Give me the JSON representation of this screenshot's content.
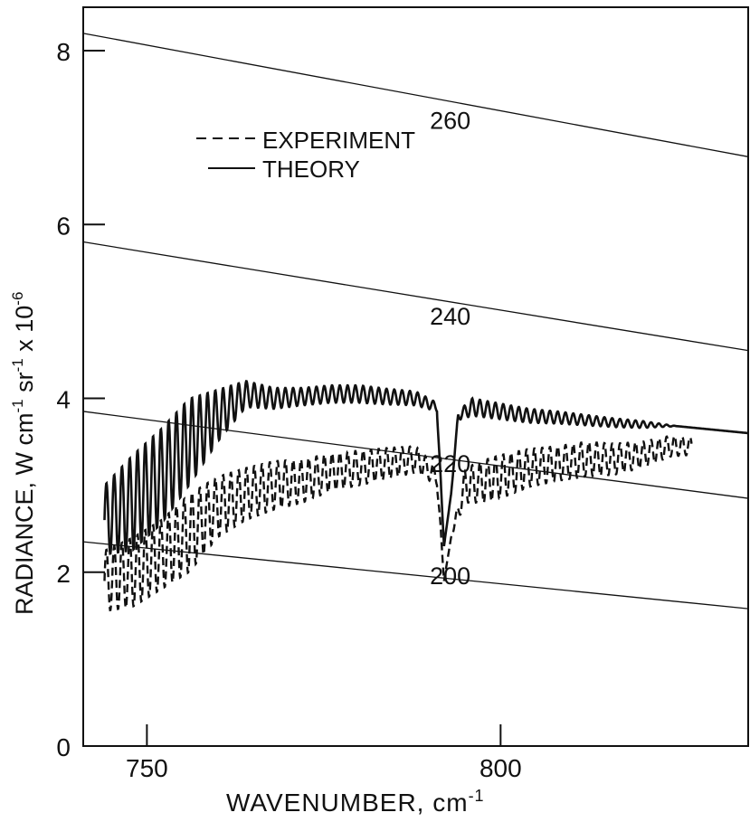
{
  "chart_data": {
    "type": "line",
    "title": "",
    "xlabel": "WAVENUMBER, cm",
    "xlabel_sup": "-1",
    "ylabel": "RADIANCE, W cm",
    "ylabel_sup1": "-1",
    "ylabel_mid": " sr",
    "ylabel_sup2": "-1",
    "ylabel_tail": " x 10",
    "ylabel_sup3": "-6",
    "xlim": [
      741,
      835
    ],
    "ylim": [
      0,
      8.5
    ],
    "xticks": [
      750,
      800
    ],
    "yticks": [
      0,
      2,
      4,
      6,
      8
    ],
    "legend": {
      "position": "top-left",
      "entries": [
        {
          "label": "EXPERIMENT",
          "style": "dashed"
        },
        {
          "label": "THEORY",
          "style": "solid"
        }
      ]
    },
    "reference_lines": [
      {
        "label": "200",
        "x": [
          741,
          835
        ],
        "y": [
          2.35,
          1.58
        ]
      },
      {
        "label": "220",
        "x": [
          741,
          835
        ],
        "y": [
          3.85,
          2.85
        ]
      },
      {
        "label": "240",
        "x": [
          741,
          835
        ],
        "y": [
          5.8,
          4.55
        ]
      },
      {
        "label": "260",
        "x": [
          741,
          835
        ],
        "y": [
          8.2,
          6.78
        ]
      }
    ],
    "series": [
      {
        "name": "THEORY",
        "style": "solid",
        "x": [
          744,
          748,
          752,
          756,
          760,
          764,
          768,
          772,
          776,
          780,
          784,
          788,
          791,
          792,
          793,
          794,
          796,
          800,
          804,
          808,
          812,
          816,
          820,
          825,
          835
        ],
        "y": [
          2.6,
          2.8,
          3.1,
          3.5,
          3.8,
          4.05,
          4.0,
          4.02,
          4.05,
          4.05,
          4.02,
          4.0,
          3.9,
          2.3,
          2.9,
          3.8,
          3.9,
          3.85,
          3.8,
          3.78,
          3.75,
          3.72,
          3.7,
          3.68,
          3.6
        ],
        "oscillation_amplitude": [
          0.4,
          0.55,
          0.55,
          0.5,
          0.3,
          0.15,
          0.12,
          0.1,
          0.1,
          0.1,
          0.09,
          0.08,
          0.05,
          0.0,
          0.0,
          0.05,
          0.1,
          0.09,
          0.08,
          0.07,
          0.06,
          0.05,
          0.04,
          0.0,
          0.0
        ]
      },
      {
        "name": "EXPERIMENT",
        "style": "dashed",
        "x": [
          744,
          748,
          752,
          756,
          760,
          764,
          768,
          772,
          776,
          780,
          784,
          788,
          791,
          792,
          793,
          795,
          798,
          800,
          804,
          808,
          812,
          816,
          820,
          824,
          827
        ],
        "y": [
          1.9,
          2.0,
          2.2,
          2.45,
          2.75,
          2.9,
          3.0,
          3.05,
          3.15,
          3.2,
          3.25,
          3.3,
          3.1,
          1.9,
          2.4,
          3.0,
          3.05,
          3.1,
          3.2,
          3.25,
          3.3,
          3.3,
          3.35,
          3.45,
          3.45
        ],
        "oscillation_amplitude": [
          0.35,
          0.4,
          0.4,
          0.45,
          0.35,
          0.3,
          0.28,
          0.25,
          0.22,
          0.2,
          0.18,
          0.15,
          0.1,
          0.0,
          0.0,
          0.2,
          0.25,
          0.25,
          0.22,
          0.2,
          0.2,
          0.18,
          0.15,
          0.12,
          0.1
        ]
      }
    ]
  }
}
